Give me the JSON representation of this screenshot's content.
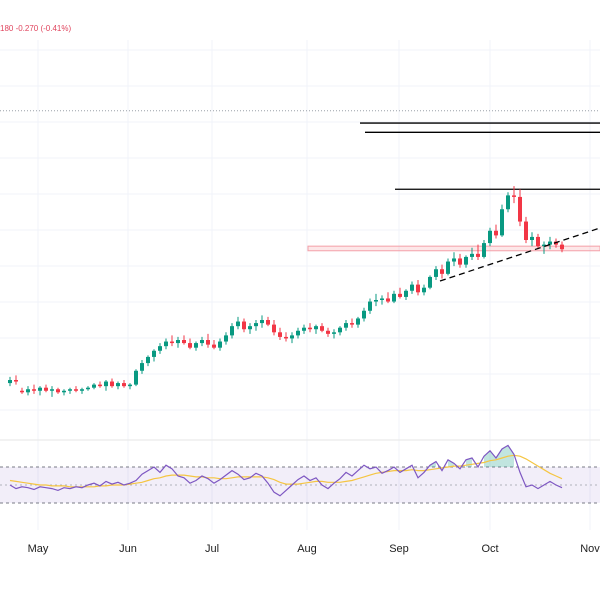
{
  "chart_data": {
    "type": "candlestick",
    "status_text": "180  -0.270 (-0.41%)",
    "x_axis": {
      "tick_labels": [
        "May",
        "Jun",
        "Jul",
        "Aug",
        "Sep",
        "Oct",
        "Nov"
      ]
    },
    "price_panel": {
      "ylim": [
        50,
        76
      ],
      "candles": [
        [
          53.7,
          54.1,
          53.5,
          53.9
        ],
        [
          53.9,
          54.2,
          53.6,
          53.8
        ],
        [
          53.2,
          53.4,
          53.0,
          53.1
        ],
        [
          53.1,
          53.5,
          52.9,
          53.3
        ],
        [
          53.3,
          53.6,
          53.0,
          53.2
        ],
        [
          53.2,
          53.5,
          52.9,
          53.4
        ],
        [
          53.4,
          53.6,
          53.1,
          53.2
        ],
        [
          53.2,
          53.5,
          52.8,
          53.3
        ],
        [
          53.3,
          53.4,
          53.0,
          53.1
        ],
        [
          53.1,
          53.3,
          52.9,
          53.2
        ],
        [
          53.2,
          53.4,
          53.0,
          53.3
        ],
        [
          53.3,
          53.5,
          53.1,
          53.2
        ],
        [
          53.2,
          53.4,
          53.0,
          53.3
        ],
        [
          53.3,
          53.5,
          53.2,
          53.4
        ],
        [
          53.4,
          53.7,
          53.3,
          53.6
        ],
        [
          53.6,
          53.8,
          53.4,
          53.5
        ],
        [
          53.5,
          53.9,
          53.2,
          53.8
        ],
        [
          53.8,
          54.0,
          53.4,
          53.5
        ],
        [
          53.5,
          53.8,
          53.3,
          53.7
        ],
        [
          53.7,
          53.9,
          53.4,
          53.5
        ],
        [
          53.5,
          53.7,
          53.3,
          53.6
        ],
        [
          53.6,
          54.6,
          53.5,
          54.5
        ],
        [
          54.5,
          55.2,
          54.3,
          55.0
        ],
        [
          55.0,
          55.5,
          54.8,
          55.4
        ],
        [
          55.4,
          55.9,
          55.1,
          55.8
        ],
        [
          55.8,
          56.3,
          55.6,
          56.1
        ],
        [
          56.1,
          56.6,
          55.9,
          56.4
        ],
        [
          56.4,
          56.8,
          56.1,
          56.3
        ],
        [
          56.3,
          56.7,
          56.0,
          56.5
        ],
        [
          56.5,
          56.8,
          56.2,
          56.3
        ],
        [
          56.3,
          56.6,
          55.9,
          56.0
        ],
        [
          56.0,
          56.4,
          55.8,
          56.3
        ],
        [
          56.3,
          56.7,
          56.1,
          56.5
        ],
        [
          56.5,
          56.9,
          56.0,
          56.2
        ],
        [
          56.2,
          56.5,
          55.9,
          56.0
        ],
        [
          56.0,
          56.6,
          55.8,
          56.4
        ],
        [
          56.4,
          57.0,
          56.2,
          56.8
        ],
        [
          56.8,
          57.6,
          56.6,
          57.4
        ],
        [
          57.4,
          58.0,
          57.2,
          57.7
        ],
        [
          57.7,
          57.9,
          57.0,
          57.2
        ],
        [
          57.2,
          57.6,
          56.9,
          57.4
        ],
        [
          57.4,
          57.8,
          57.1,
          57.6
        ],
        [
          57.6,
          58.1,
          57.3,
          57.8
        ],
        [
          57.8,
          58.0,
          57.4,
          57.5
        ],
        [
          57.5,
          57.8,
          56.8,
          57.0
        ],
        [
          57.0,
          57.3,
          56.5,
          56.7
        ],
        [
          56.7,
          57.0,
          56.4,
          56.6
        ],
        [
          56.6,
          57.0,
          56.3,
          56.8
        ],
        [
          56.8,
          57.3,
          56.6,
          57.1
        ],
        [
          57.1,
          57.5,
          56.9,
          57.3
        ],
        [
          57.3,
          57.6,
          57.0,
          57.2
        ],
        [
          57.2,
          57.5,
          56.9,
          57.4
        ],
        [
          57.4,
          57.6,
          57.0,
          57.1
        ],
        [
          57.1,
          57.3,
          56.7,
          56.9
        ],
        [
          56.9,
          57.2,
          56.6,
          57.0
        ],
        [
          57.0,
          57.4,
          56.8,
          57.3
        ],
        [
          57.3,
          57.8,
          57.1,
          57.6
        ],
        [
          57.6,
          57.9,
          57.3,
          57.5
        ],
        [
          57.5,
          58.0,
          57.3,
          57.9
        ],
        [
          57.9,
          58.6,
          57.7,
          58.4
        ],
        [
          58.4,
          59.2,
          58.2,
          59.0
        ],
        [
          59.0,
          59.5,
          58.7,
          59.1
        ],
        [
          59.1,
          59.4,
          58.8,
          59.2
        ],
        [
          59.2,
          59.6,
          58.9,
          59.0
        ],
        [
          59.0,
          59.7,
          58.9,
          59.5
        ],
        [
          59.5,
          59.9,
          59.2,
          59.3
        ],
        [
          59.3,
          59.8,
          59.1,
          59.7
        ],
        [
          59.7,
          60.3,
          59.5,
          60.1
        ],
        [
          60.1,
          60.4,
          59.4,
          59.6
        ],
        [
          59.6,
          60.1,
          59.4,
          59.9
        ],
        [
          59.9,
          60.7,
          59.8,
          60.6
        ],
        [
          60.6,
          61.3,
          60.4,
          61.1
        ],
        [
          61.1,
          61.4,
          60.5,
          60.8
        ],
        [
          60.8,
          61.8,
          60.7,
          61.6
        ],
        [
          61.6,
          62.2,
          61.3,
          61.8
        ],
        [
          61.8,
          62.1,
          61.2,
          61.4
        ],
        [
          61.4,
          62.0,
          61.2,
          61.9
        ],
        [
          61.9,
          62.5,
          61.7,
          62.1
        ],
        [
          62.1,
          62.7,
          61.7,
          61.9
        ],
        [
          61.9,
          63.0,
          61.8,
          62.8
        ],
        [
          62.8,
          63.8,
          62.6,
          63.6
        ],
        [
          63.6,
          64.0,
          63.1,
          63.3
        ],
        [
          63.3,
          65.3,
          63.2,
          65.0
        ],
        [
          65.0,
          66.1,
          64.8,
          65.9
        ],
        [
          65.9,
          66.5,
          65.4,
          65.8
        ],
        [
          65.8,
          66.3,
          63.9,
          64.2
        ],
        [
          64.2,
          64.5,
          62.8,
          63.0
        ],
        [
          63.0,
          63.5,
          62.6,
          63.2
        ],
        [
          63.2,
          63.4,
          62.4,
          62.6
        ],
        [
          62.6,
          62.9,
          62.1,
          62.7
        ],
        [
          62.7,
          63.2,
          62.4,
          62.9
        ],
        [
          62.9,
          63.1,
          62.5,
          62.7
        ],
        [
          62.7,
          62.9,
          62.2,
          62.4
        ]
      ],
      "resistance_levels": [
        70.6,
        70.0,
        66.3
      ],
      "support_zone": [
        62.3,
        62.6
      ],
      "dotted_level": 71.4
    },
    "rsi_panel": {
      "ylim": [
        0,
        100
      ],
      "band": [
        30,
        70
      ],
      "rsi_values": [
        50,
        46,
        48,
        47,
        45,
        48,
        47,
        46,
        44,
        47,
        46,
        48,
        47,
        50,
        52,
        49,
        54,
        51,
        53,
        50,
        52,
        55,
        62,
        66,
        70,
        64,
        72,
        68,
        60,
        58,
        52,
        55,
        60,
        57,
        52,
        56,
        61,
        66,
        62,
        56,
        58,
        63,
        60,
        52,
        42,
        38,
        44,
        50,
        56,
        60,
        55,
        58,
        50,
        46,
        52,
        57,
        64,
        60,
        66,
        72,
        68,
        70,
        63,
        66,
        70,
        64,
        68,
        72,
        58,
        64,
        72,
        76,
        66,
        78,
        74,
        68,
        78,
        80,
        70,
        82,
        88,
        80,
        90,
        94,
        84,
        64,
        48,
        50,
        46,
        50,
        54,
        50,
        47
      ],
      "ma_values": [
        55,
        54,
        53,
        52,
        51,
        50,
        50,
        49,
        49,
        49,
        48,
        48,
        48,
        48,
        48,
        49,
        49,
        50,
        50,
        50,
        51,
        52,
        53,
        55,
        57,
        58,
        60,
        61,
        61,
        61,
        60,
        59,
        59,
        58,
        58,
        57,
        57,
        58,
        59,
        59,
        59,
        59,
        59,
        58,
        56,
        53,
        51,
        51,
        51,
        52,
        53,
        54,
        54,
        53,
        53,
        53,
        54,
        55,
        57,
        59,
        61,
        63,
        64,
        65,
        66,
        66,
        66,
        67,
        66,
        66,
        67,
        68,
        69,
        70,
        71,
        71,
        72,
        73,
        74,
        75,
        77,
        78,
        80,
        82,
        83,
        82,
        79,
        75,
        71,
        67,
        63,
        60,
        57
      ]
    }
  }
}
